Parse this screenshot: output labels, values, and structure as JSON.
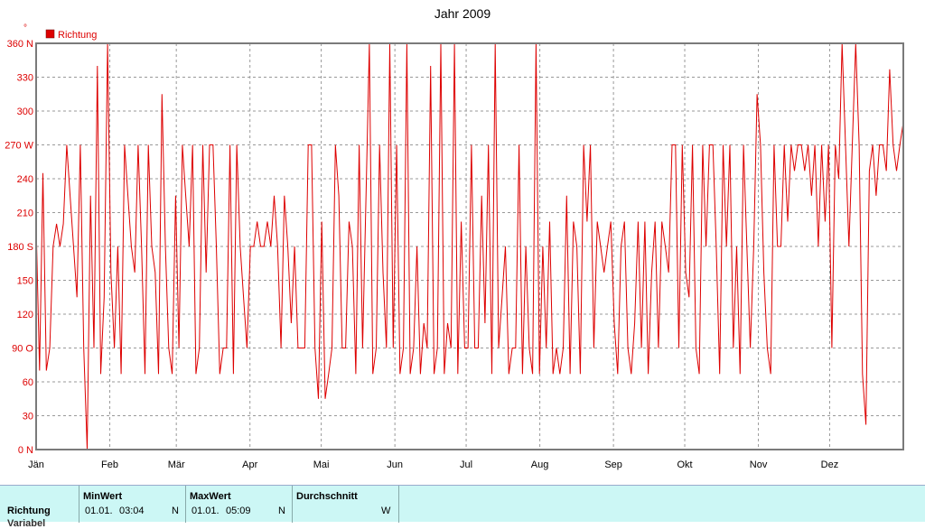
{
  "chart_data": {
    "type": "line",
    "title": "Jahr 2009",
    "ylabel": "°",
    "legend": [
      "Richtung"
    ],
    "legend_position": "top-left",
    "series_color": "#dd0000",
    "ylim": [
      0,
      360
    ],
    "yticks": [
      "0 N",
      "30",
      "60",
      "90 O",
      "120",
      "150",
      "180 S",
      "210",
      "240",
      "270 W",
      "300",
      "330",
      "360 N"
    ],
    "xticks": [
      "Jän",
      "Feb",
      "Mär",
      "Apr",
      "Mai",
      "Jun",
      "Jul",
      "Aug",
      "Sep",
      "Okt",
      "Nov",
      "Dez"
    ],
    "grid": true,
    "series": [
      {
        "name": "Richtung",
        "x_range_days": [
          0,
          365
        ],
        "values": [
          200,
          70,
          245,
          70,
          90,
          180,
          200,
          180,
          200,
          270,
          225,
          180,
          135,
          270,
          90,
          0,
          225,
          90,
          340,
          67,
          135,
          360,
          157,
          90,
          180,
          67,
          270,
          225,
          180,
          157,
          270,
          180,
          67,
          270,
          180,
          157,
          67,
          315,
          180,
          90,
          67,
          225,
          90,
          270,
          225,
          180,
          270,
          67,
          90,
          270,
          157,
          270,
          270,
          180,
          67,
          90,
          90,
          270,
          67,
          270,
          180,
          135,
          90,
          180,
          180,
          202,
          180,
          180,
          202,
          180,
          225,
          180,
          90,
          225,
          180,
          112,
          180,
          90,
          90,
          90,
          270,
          270,
          90,
          45,
          202,
          45,
          67,
          90,
          270,
          225,
          90,
          90,
          202,
          180,
          67,
          270,
          90,
          225,
          360,
          67,
          90,
          270,
          157,
          90,
          360,
          90,
          270,
          67,
          90,
          360,
          67,
          90,
          180,
          67,
          112,
          90,
          340,
          67,
          90,
          360,
          67,
          112,
          90,
          360,
          67,
          202,
          90,
          90,
          270,
          90,
          90,
          225,
          112,
          270,
          67,
          360,
          90,
          135,
          180,
          67,
          90,
          90,
          270,
          67,
          180,
          90,
          67,
          360,
          67,
          180,
          90,
          202,
          67,
          90,
          67,
          90,
          225,
          67,
          202,
          180,
          67,
          270,
          202,
          270,
          90,
          202,
          180,
          157,
          180,
          202,
          112,
          67,
          180,
          202,
          90,
          67,
          112,
          202,
          90,
          202,
          67,
          157,
          202,
          90,
          202,
          180,
          157,
          270,
          270,
          90,
          270,
          157,
          135,
          270,
          90,
          67,
          270,
          180,
          270,
          270,
          180,
          67,
          270,
          180,
          270,
          90,
          180,
          67,
          270,
          180,
          90,
          180,
          315,
          270,
          157,
          90,
          67,
          270,
          180,
          180,
          270,
          202,
          270,
          247,
          270,
          270,
          247,
          270,
          225,
          270,
          180,
          270,
          202,
          270,
          90,
          270,
          240,
          360,
          270,
          180,
          270,
          360,
          270,
          67,
          22,
          247,
          270,
          225,
          270,
          270,
          247,
          337,
          270,
          247,
          270,
          290
        ]
      }
    ]
  },
  "stats": {
    "row_label": "Richtung",
    "row_label_2": "Variabel",
    "min": {
      "header": "MinWert",
      "date": "01.01.",
      "time": "03:04",
      "value": "N"
    },
    "max": {
      "header": "MaxWert",
      "date": "01.01.",
      "time": "05:09",
      "value": "N"
    },
    "avg": {
      "header": "Durchschnitt",
      "value": "W"
    }
  }
}
